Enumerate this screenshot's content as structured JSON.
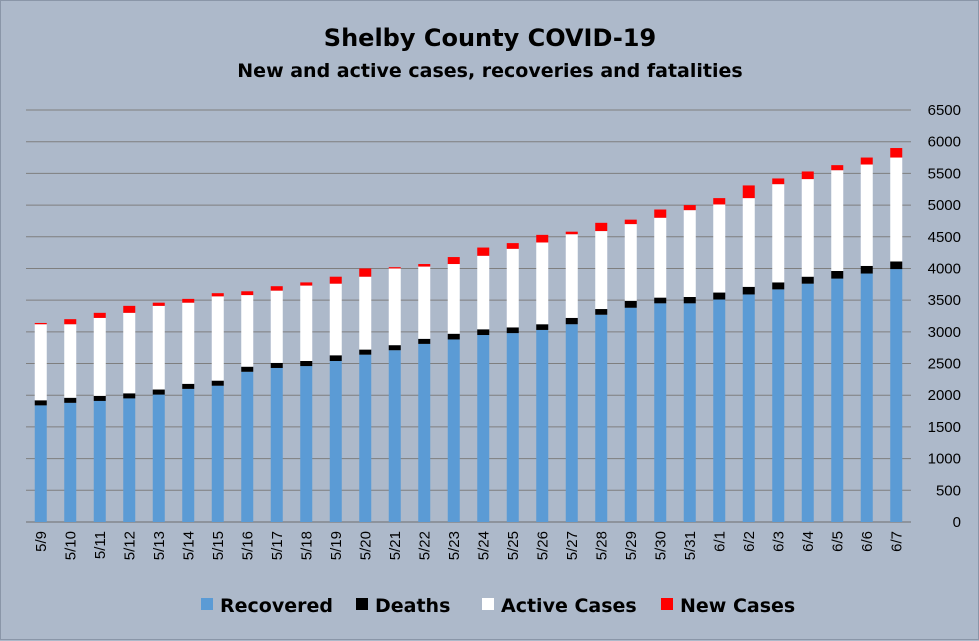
{
  "chart_data": {
    "type": "bar",
    "stacked": true,
    "title": "Shelby County COVID-19",
    "subtitle": "New and active cases, recoveries and fatalities",
    "ylim": [
      0,
      6500
    ],
    "yticks": [
      0,
      500,
      1000,
      1500,
      2000,
      2500,
      3000,
      3500,
      4000,
      4500,
      5000,
      5500,
      6000,
      6500
    ],
    "y_axis_side": "right",
    "grid": true,
    "legend_position": "bottom",
    "categories": [
      "5/9",
      "5/10",
      "5/11",
      "5/12",
      "5/13",
      "5/14",
      "5/15",
      "5/16",
      "5/17",
      "5/18",
      "5/19",
      "5/20",
      "5/21",
      "5/22",
      "5/23",
      "5/24",
      "5/25",
      "5/26",
      "5/27",
      "5/28",
      "5/29",
      "5/30",
      "5/31",
      "6/1",
      "6/2",
      "6/3",
      "6/4",
      "6/5",
      "6/6",
      "6/7"
    ],
    "series": [
      {
        "name": "Recovered",
        "color": "#5b9bd5",
        "values": [
          1840,
          1880,
          1910,
          1950,
          2010,
          2100,
          2150,
          2370,
          2430,
          2460,
          2540,
          2640,
          2710,
          2810,
          2880,
          2950,
          2980,
          3030,
          3120,
          3270,
          3380,
          3450,
          3450,
          3510,
          3590,
          3670,
          3760,
          3840,
          3920,
          3990
        ]
      },
      {
        "name": "Deaths",
        "color": "#000000",
        "values": [
          80,
          80,
          80,
          80,
          80,
          80,
          80,
          80,
          80,
          80,
          90,
          80,
          80,
          80,
          90,
          90,
          90,
          90,
          100,
          90,
          110,
          90,
          100,
          110,
          120,
          110,
          110,
          120,
          120,
          120
        ]
      },
      {
        "name": "Active Cases",
        "color": "#ffffff",
        "values": [
          1200,
          1160,
          1230,
          1270,
          1320,
          1280,
          1330,
          1130,
          1140,
          1190,
          1130,
          1150,
          1210,
          1140,
          1100,
          1160,
          1240,
          1290,
          1320,
          1230,
          1210,
          1260,
          1370,
          1390,
          1400,
          1550,
          1540,
          1590,
          1600,
          1640
        ]
      },
      {
        "name": "New Cases",
        "color": "#ff0000",
        "values": [
          20,
          80,
          80,
          110,
          50,
          60,
          50,
          60,
          70,
          50,
          110,
          130,
          20,
          40,
          110,
          130,
          90,
          120,
          40,
          130,
          70,
          130,
          80,
          100,
          200,
          90,
          120,
          80,
          110,
          150
        ]
      }
    ]
  }
}
